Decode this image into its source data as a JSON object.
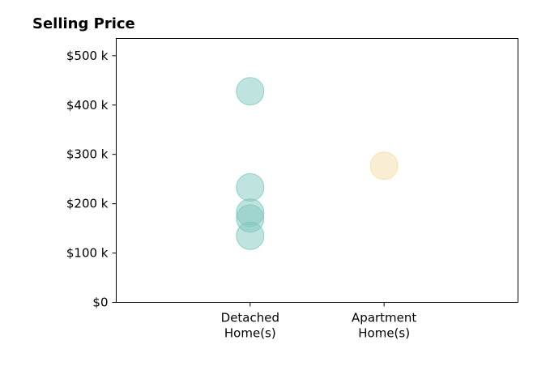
{
  "chart_data": {
    "type": "scatter",
    "title": "Selling Price",
    "xlabel": "",
    "ylabel": "",
    "categories": [
      "Detached\nHome(s)",
      "Apartment\nHome(s)"
    ],
    "x_range": [
      -1,
      2
    ],
    "ylim": [
      0,
      535000
    ],
    "y_ticks": [
      0,
      100000,
      200000,
      300000,
      400000,
      500000
    ],
    "y_tick_labels": [
      "$0",
      "$100 k",
      "$200 k",
      "$300 k",
      "$400 k",
      "$500 k"
    ],
    "grid": false,
    "series": [
      {
        "color": "#7fc8bd",
        "category_index": 0,
        "values": [
          428000,
          233000,
          182000,
          170000,
          135000
        ]
      },
      {
        "color": "#f4dea8",
        "category_index": 1,
        "values": [
          277000
        ]
      }
    ]
  }
}
